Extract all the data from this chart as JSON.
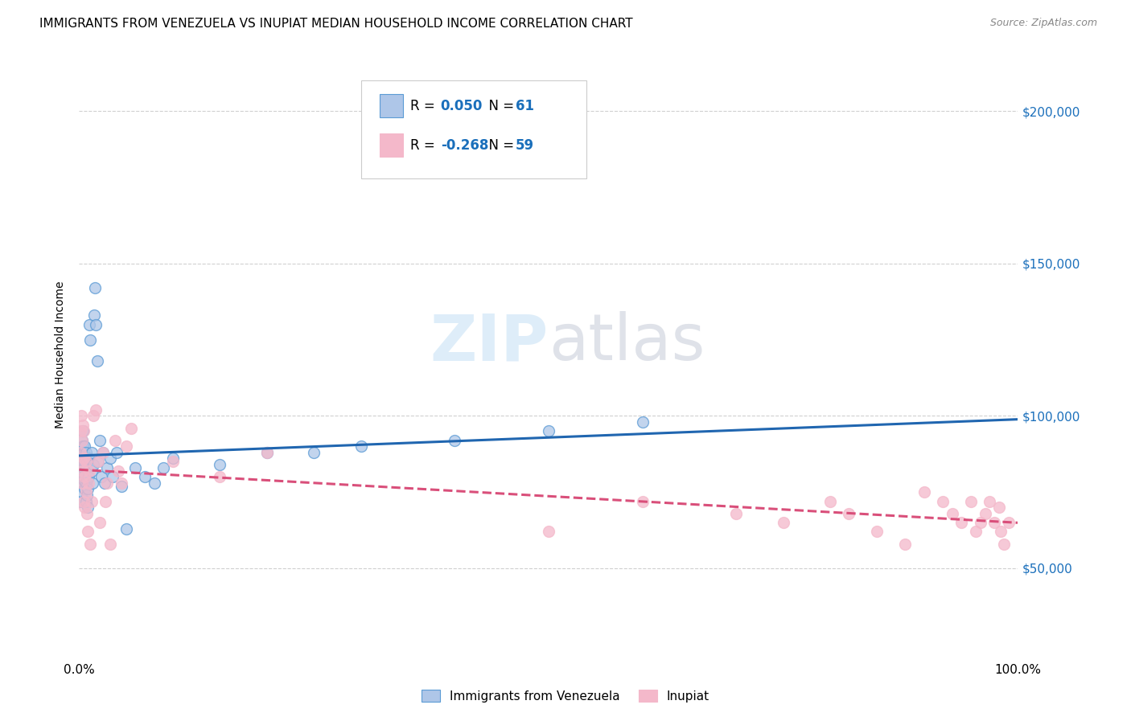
{
  "title": "IMMIGRANTS FROM VENEZUELA VS INUPIAT MEDIAN HOUSEHOLD INCOME CORRELATION CHART",
  "source": "Source: ZipAtlas.com",
  "ylabel": "Median Household Income",
  "xlim": [
    0,
    1.0
  ],
  "ylim": [
    20000,
    220000
  ],
  "xtick_positions": [
    0.0,
    1.0
  ],
  "xtick_labels": [
    "0.0%",
    "100.0%"
  ],
  "ytick_values": [
    50000,
    100000,
    150000,
    200000
  ],
  "ytick_labels": [
    "$50,000",
    "$100,000",
    "$150,000",
    "$200,000"
  ],
  "background_color": "#ffffff",
  "grid_color": "#d0d0d0",
  "watermark": "ZIPatlas",
  "legend_r1": "R =  0.050",
  "legend_n1": "N =  61",
  "legend_r2": "R = -0.268",
  "legend_n2": "N =  59",
  "venezuela_color": "#aec6e8",
  "venezuela_edge_color": "#5b9bd5",
  "inupiat_color": "#f4b8ca",
  "inupiat_edge_color": "#f4b8ca",
  "venezuela_line_color": "#2066b0",
  "inupiat_line_color": "#d94f7a",
  "r_value_color": "#1a6fbb",
  "marker_size": 100,
  "marker_lw": 1.0,
  "marker_alpha": 0.75,
  "title_fontsize": 11,
  "tick_fontsize": 11,
  "legend_fontsize": 12,
  "venezuela_x": [
    0.001,
    0.001,
    0.002,
    0.002,
    0.003,
    0.003,
    0.003,
    0.004,
    0.004,
    0.004,
    0.005,
    0.005,
    0.005,
    0.006,
    0.006,
    0.006,
    0.006,
    0.007,
    0.007,
    0.007,
    0.007,
    0.008,
    0.008,
    0.008,
    0.009,
    0.009,
    0.01,
    0.01,
    0.011,
    0.012,
    0.013,
    0.013,
    0.014,
    0.015,
    0.016,
    0.017,
    0.018,
    0.019,
    0.02,
    0.022,
    0.024,
    0.025,
    0.027,
    0.03,
    0.033,
    0.036,
    0.04,
    0.045,
    0.05,
    0.06,
    0.07,
    0.08,
    0.09,
    0.1,
    0.15,
    0.2,
    0.25,
    0.3,
    0.4,
    0.5,
    0.6
  ],
  "venezuela_y": [
    80000,
    72000,
    78000,
    85000,
    88000,
    92000,
    75000,
    82000,
    90000,
    95000,
    79000,
    83000,
    88000,
    76000,
    80000,
    85000,
    90000,
    72000,
    78000,
    83000,
    88000,
    74000,
    79000,
    85000,
    70000,
    76000,
    80000,
    86000,
    130000,
    125000,
    82000,
    88000,
    78000,
    84000,
    133000,
    142000,
    130000,
    118000,
    85000,
    92000,
    80000,
    88000,
    78000,
    83000,
    86000,
    80000,
    88000,
    77000,
    63000,
    83000,
    80000,
    78000,
    83000,
    86000,
    84000,
    88000,
    88000,
    90000,
    92000,
    95000,
    98000
  ],
  "inupiat_x": [
    0.001,
    0.001,
    0.002,
    0.002,
    0.003,
    0.003,
    0.004,
    0.004,
    0.005,
    0.005,
    0.005,
    0.006,
    0.006,
    0.007,
    0.007,
    0.008,
    0.009,
    0.01,
    0.011,
    0.012,
    0.013,
    0.015,
    0.018,
    0.02,
    0.022,
    0.025,
    0.028,
    0.03,
    0.033,
    0.038,
    0.042,
    0.045,
    0.05,
    0.055,
    0.1,
    0.15,
    0.2,
    0.5,
    0.6,
    0.7,
    0.75,
    0.8,
    0.82,
    0.85,
    0.88,
    0.9,
    0.92,
    0.93,
    0.94,
    0.95,
    0.955,
    0.96,
    0.965,
    0.97,
    0.975,
    0.98,
    0.982,
    0.985,
    0.99
  ],
  "inupiat_y": [
    95000,
    88000,
    85000,
    100000,
    78000,
    92000,
    82000,
    97000,
    72000,
    86000,
    95000,
    70000,
    80000,
    75000,
    85000,
    68000,
    62000,
    78000,
    82000,
    58000,
    72000,
    100000,
    102000,
    85000,
    65000,
    88000,
    72000,
    78000,
    58000,
    92000,
    82000,
    78000,
    90000,
    96000,
    85000,
    80000,
    88000,
    62000,
    72000,
    68000,
    65000,
    72000,
    68000,
    62000,
    58000,
    75000,
    72000,
    68000,
    65000,
    72000,
    62000,
    65000,
    68000,
    72000,
    65000,
    70000,
    62000,
    58000,
    65000
  ]
}
